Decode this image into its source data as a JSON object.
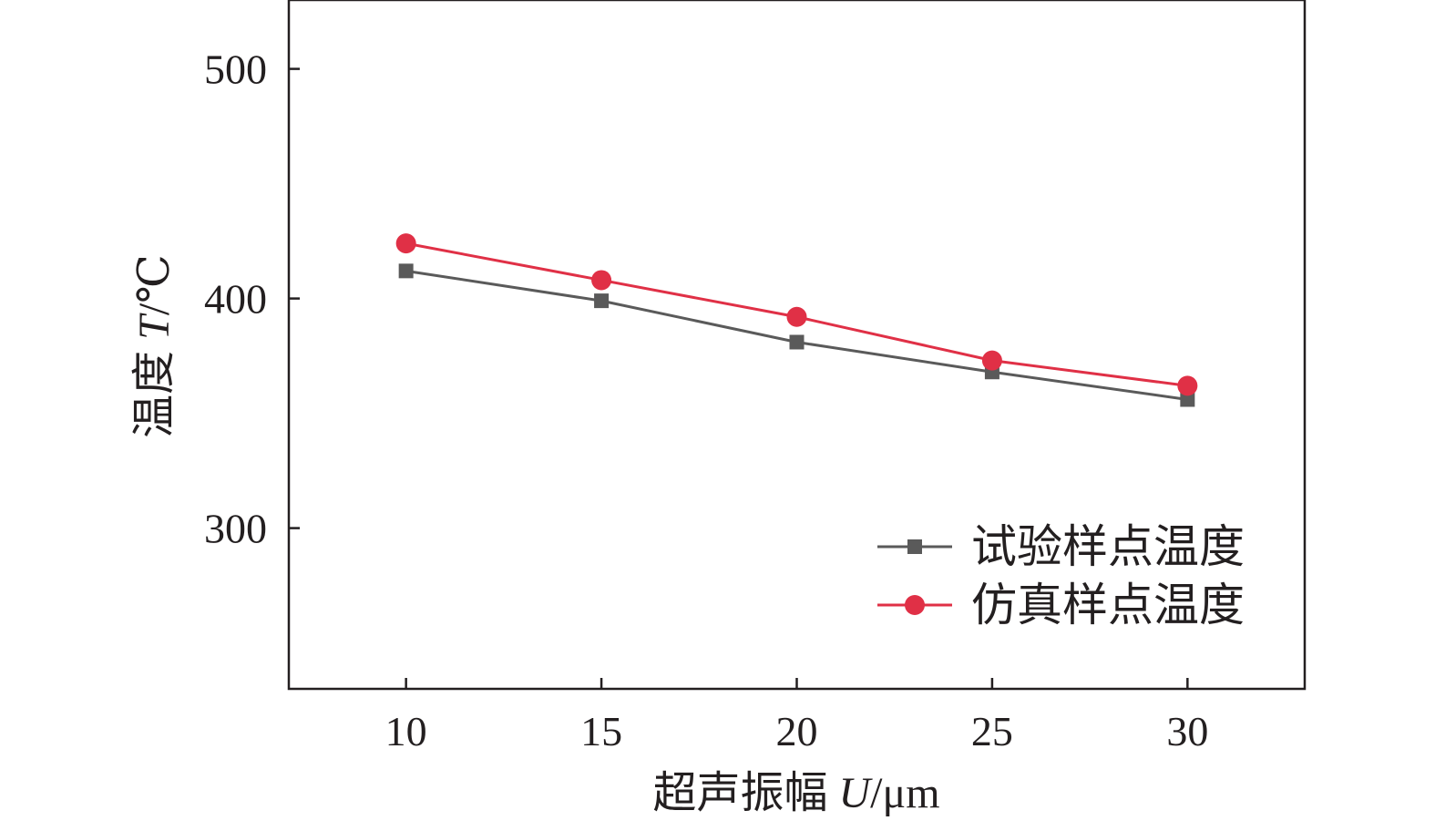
{
  "chart_data": {
    "type": "line",
    "title": "",
    "xlabel": "超声振幅 U/μm",
    "xlabel_main": "超声振幅 ",
    "xlabel_var": "U",
    "xlabel_unit": "/μm",
    "ylabel": "温度 T/℃",
    "ylabel_main": "温度 ",
    "ylabel_var": "T",
    "ylabel_unit": "/℃",
    "x": [
      10,
      15,
      20,
      25,
      30
    ],
    "x_tick_labels": [
      "10",
      "15",
      "20",
      "25",
      "30"
    ],
    "y_tick_values": [
      300,
      400,
      500
    ],
    "y_tick_labels": [
      "300",
      "400",
      "500"
    ],
    "xlim": [
      7,
      33
    ],
    "ylim": [
      230,
      530
    ],
    "grid": false,
    "legend_position": "bottom-right",
    "series": [
      {
        "name": "试验样点温度",
        "marker": "square",
        "color": "#5a5a5a",
        "values": [
          412,
          399,
          381,
          368,
          356
        ]
      },
      {
        "name": "仿真样点温度",
        "marker": "circle",
        "color": "#e03046",
        "values": [
          424,
          408,
          392,
          373,
          362
        ]
      }
    ]
  }
}
